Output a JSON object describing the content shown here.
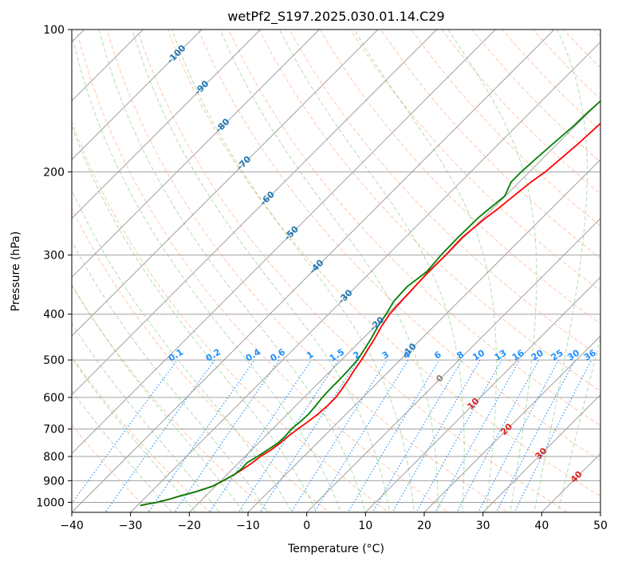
{
  "chart_data": {
    "type": "line",
    "title": "wetPf2_S197.2025.030.01.14.C29",
    "xlabel": "Temperature (°C)",
    "ylabel": "Pressure (hPa)",
    "xlim": [
      -40,
      50
    ],
    "ylim": [
      1050,
      100
    ],
    "y_scale": "log",
    "grid": true,
    "x_ticks": [
      -40,
      -30,
      -20,
      -10,
      0,
      10,
      20,
      30,
      40,
      50
    ],
    "y_ticks": [
      100,
      200,
      300,
      400,
      500,
      600,
      700,
      800,
      900,
      1000
    ],
    "skew": "isotherms slanted at 45 degrees",
    "colors": {
      "temperature": "#ff0000",
      "dewpoint": "#008000",
      "isotherm": "#a0a0a0",
      "dry_adiabat": "#ff9966",
      "moist_adiabat": "#66bb66",
      "mixing_ratio": "#1e90ff",
      "isotherm_label": "#1f77b4",
      "warm_label": "#d62728",
      "zero_label": "#808080"
    },
    "isotherm_labels": [
      {
        "text": "-100",
        "t": -100,
        "p": 113
      },
      {
        "text": "-90",
        "t": -90,
        "p": 133
      },
      {
        "text": "-80",
        "t": -80,
        "p": 160
      },
      {
        "text": "-70",
        "t": -70,
        "p": 192
      },
      {
        "text": "-60",
        "t": -60,
        "p": 228
      },
      {
        "text": "-50",
        "t": -50,
        "p": 270
      },
      {
        "text": "-40",
        "t": -40,
        "p": 318
      },
      {
        "text": "-30",
        "t": -30,
        "p": 368
      },
      {
        "text": "-20",
        "t": -20,
        "p": 420
      },
      {
        "text": "-10",
        "t": -10,
        "p": 478
      },
      {
        "text": "0",
        "t": 0,
        "p": 548
      },
      {
        "text": "10",
        "t": 10,
        "p": 620
      },
      {
        "text": "20",
        "t": 20,
        "p": 702
      },
      {
        "text": "30",
        "t": 30,
        "p": 790
      },
      {
        "text": "40",
        "t": 40,
        "p": 885
      }
    ],
    "mixing_ratio_labels": [
      "0.1",
      "0.2",
      "0.4",
      "0.6",
      "1",
      "1.5",
      "2",
      "3",
      "4",
      "6",
      "8",
      "10",
      "13",
      "16",
      "20",
      "25",
      "30",
      "36"
    ],
    "mixing_ratio_values": [
      0.1,
      0.2,
      0.4,
      0.6,
      1,
      1.5,
      2,
      3,
      4,
      6,
      8,
      10,
      13,
      16,
      20,
      25,
      30,
      36
    ],
    "mixing_ratio_label_pressure": 500,
    "series": [
      {
        "name": "Temperature",
        "p": [
          1016,
          1010,
          1000,
          985,
          970,
          950,
          925,
          900,
          875,
          850,
          825,
          800,
          775,
          750,
          725,
          700,
          675,
          650,
          625,
          600,
          575,
          550,
          525,
          500,
          475,
          450,
          425,
          400,
          375,
          350,
          325,
          300,
          275,
          250,
          240,
          225,
          210,
          200,
          190,
          175,
          160,
          150,
          140,
          125,
          115,
          105,
          100
        ],
        "t": [
          -29.5,
          -28.8,
          -27.2,
          -25.6,
          -24.4,
          -22.4,
          -20.5,
          -19.6,
          -18.8,
          -18.2,
          -17.7,
          -17.4,
          -16.7,
          -16.3,
          -16.1,
          -15.7,
          -15.2,
          -14.8,
          -14.6,
          -14.6,
          -15.0,
          -15.5,
          -16.1,
          -16.6,
          -17.3,
          -18.0,
          -18.9,
          -19.6,
          -19.8,
          -20.0,
          -20.2,
          -20.1,
          -20.3,
          -19.6,
          -19.1,
          -18.6,
          -18.0,
          -17.3,
          -17.0,
          -16.5,
          -16.2,
          -15.9,
          -15.5,
          -14.9,
          -14.7,
          -13.6,
          -13.2
        ]
      },
      {
        "name": "Dewpoint",
        "p": [
          1016,
          1010,
          1000,
          985,
          970,
          950,
          925,
          900,
          875,
          850,
          825,
          800,
          775,
          750,
          725,
          700,
          675,
          650,
          625,
          600,
          575,
          550,
          525,
          500,
          475,
          450,
          425,
          400,
          375,
          350,
          325,
          300,
          275,
          250,
          240,
          225,
          210,
          200,
          190,
          175,
          160,
          150,
          140,
          125,
          115,
          105,
          100
        ],
        "t": [
          -29.5,
          -28.8,
          -27.2,
          -25.6,
          -24.4,
          -22.4,
          -20.5,
          -19.6,
          -18.8,
          -18.5,
          -18.6,
          -17.9,
          -17.3,
          -16.7,
          -16.6,
          -16.8,
          -16.5,
          -16.4,
          -16.6,
          -16.9,
          -17.0,
          -17.0,
          -17.1,
          -17.3,
          -17.9,
          -18.6,
          -19.5,
          -20.2,
          -21.1,
          -21.3,
          -20.5,
          -20.9,
          -21.0,
          -20.9,
          -20.6,
          -20.1,
          -21.4,
          -21.4,
          -21.2,
          -20.8,
          -20.3,
          -20.2,
          -19.9,
          -18.5,
          -17.5,
          -16.5,
          -15.8
        ]
      }
    ]
  }
}
